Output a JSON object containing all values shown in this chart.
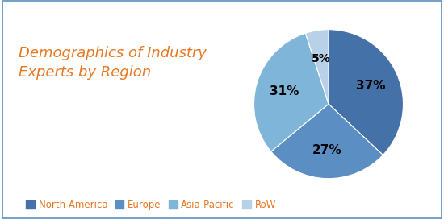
{
  "title": "Demographics of Industry\nExperts by Region",
  "title_color": "#E87722",
  "title_fontsize": 13,
  "slices": [
    37,
    27,
    31,
    5
  ],
  "labels": [
    "North America",
    "Europe",
    "Asia-Pacific",
    "RoW"
  ],
  "pct_labels": [
    "37%",
    "27%",
    "31%",
    "5%"
  ],
  "colors": [
    "#4472A8",
    "#5B8FC4",
    "#7EB5D8",
    "#B8D0E8"
  ],
  "legend_text_color": "#E87722",
  "background_color": "#FFFFFF",
  "border_color": "#5B8FC4",
  "startangle": 90
}
